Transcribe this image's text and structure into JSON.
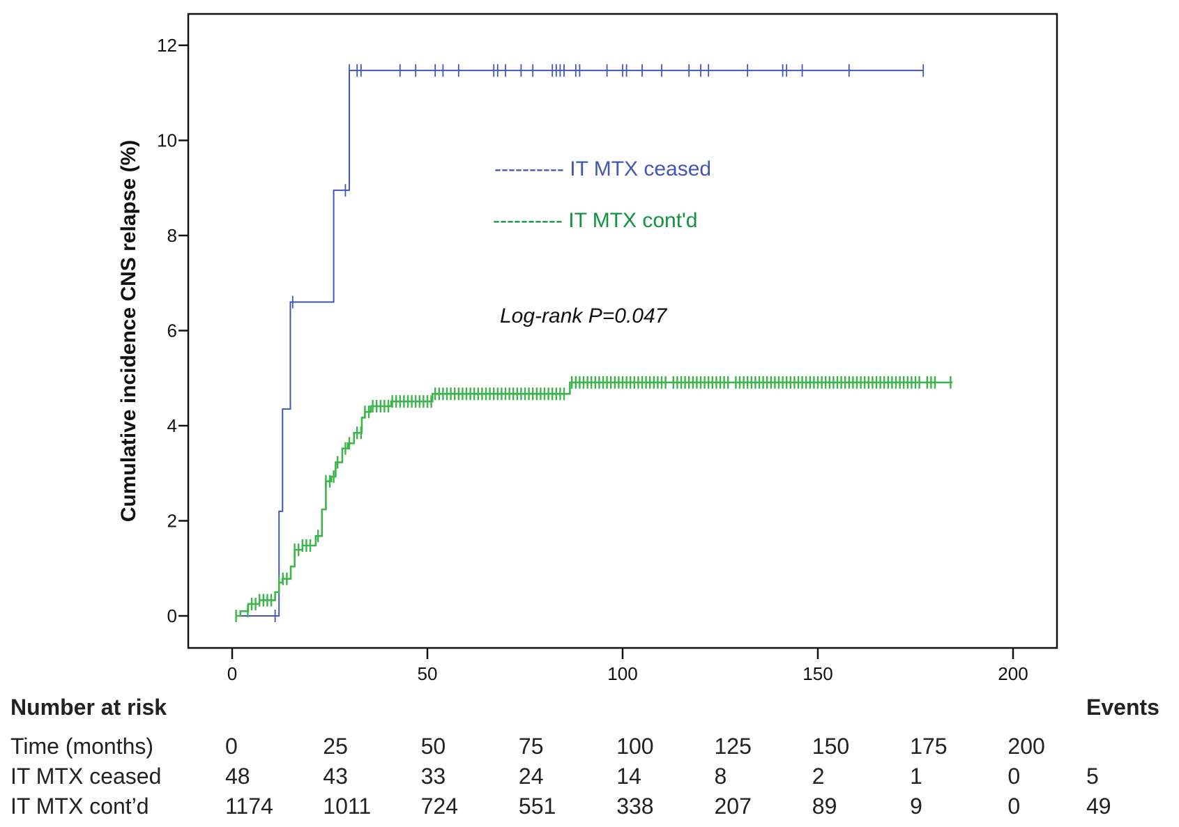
{
  "chart_data": {
    "type": "line",
    "subtype": "kaplan-meier-cumulative-incidence",
    "xlabel": "",
    "ylabel": "Cumulative incidence CNS relapse (%)",
    "xlim": [
      0,
      200
    ],
    "ylim": [
      0,
      12
    ],
    "xticks": [
      "0",
      "50",
      "100",
      "150",
      "200"
    ],
    "yticks": [
      "0",
      "2",
      "4",
      "6",
      "8",
      "10",
      "12"
    ],
    "grid": false,
    "legend_placement": "center-top",
    "annotation": "Log-rank P=0.047",
    "series": [
      {
        "name": "IT MTX ceased",
        "legend_label": "---------- IT MTX ceased",
        "color": "#4257b2",
        "start": 2.3,
        "end": 177,
        "steps": [
          [
            2.3,
            0
          ],
          [
            12,
            2.2
          ],
          [
            12.9,
            4.35
          ],
          [
            14.9,
            6.6
          ],
          [
            26,
            8.95
          ],
          [
            30,
            11.47
          ]
        ],
        "censored": [
          11,
          15.5,
          29,
          30,
          32,
          33,
          43,
          47,
          52,
          54,
          58,
          67,
          68,
          70,
          74,
          77,
          82,
          83,
          84,
          85,
          88,
          89,
          96,
          100,
          101,
          105,
          110,
          117,
          120,
          122,
          132,
          141,
          142,
          146,
          158,
          177
        ]
      },
      {
        "name": "IT MTX cont'd",
        "legend_label": "---------- IT MTX cont'd",
        "color": "#3cb54a",
        "text_color": "#0e9440",
        "start": 1,
        "end": 184.5,
        "steps": [
          [
            1,
            0
          ],
          [
            2.1,
            0.1
          ],
          [
            4.1,
            0.25
          ],
          [
            7,
            0.33
          ],
          [
            11,
            0.5
          ],
          [
            12,
            0.7
          ],
          [
            12.9,
            0.78
          ],
          [
            15,
            1.04
          ],
          [
            16,
            1.39
          ],
          [
            18,
            1.48
          ],
          [
            21.4,
            1.68
          ],
          [
            23,
            2.24
          ],
          [
            24,
            2.83
          ],
          [
            25.4,
            2.93
          ],
          [
            26.5,
            3.23
          ],
          [
            28.2,
            3.52
          ],
          [
            29.6,
            3.63
          ],
          [
            31.2,
            3.85
          ],
          [
            33.2,
            4.17
          ],
          [
            34,
            4.29
          ],
          [
            35.5,
            4.41
          ],
          [
            40.7,
            4.51
          ],
          [
            51.3,
            4.67
          ],
          [
            86.5,
            4.91
          ]
        ],
        "censored": [
          1,
          4,
          5,
          6,
          7,
          8,
          9,
          10,
          12,
          13,
          14,
          16,
          17,
          18,
          19,
          20,
          22,
          24,
          25,
          26,
          27,
          29,
          30,
          32,
          33,
          34,
          35,
          36,
          37,
          38,
          39,
          40,
          41,
          42,
          43,
          44,
          45,
          46,
          47,
          48,
          49,
          50,
          51,
          52,
          53,
          54,
          55,
          56,
          57,
          58,
          59,
          60,
          61,
          62,
          63,
          64,
          65,
          66,
          67,
          68,
          69,
          70,
          71,
          72,
          73,
          74,
          75,
          76,
          77,
          78,
          79,
          80,
          81,
          82,
          83,
          84,
          85,
          87,
          88,
          89,
          90,
          91,
          92,
          93,
          94,
          95,
          96,
          97,
          98,
          99,
          100,
          101,
          102,
          103,
          104,
          105,
          106,
          107,
          108,
          109,
          110,
          111,
          113,
          114,
          115,
          116,
          117,
          118,
          119,
          120,
          121,
          122,
          123,
          124,
          125,
          126,
          127,
          129,
          130,
          131,
          132,
          133,
          134,
          135,
          136,
          137,
          138,
          139,
          140,
          141,
          142,
          143,
          144,
          145,
          146,
          147,
          148,
          149,
          150,
          151,
          152,
          153,
          154,
          155,
          156,
          157,
          158,
          159,
          160,
          161,
          162,
          163,
          164,
          165,
          166,
          167,
          168,
          169,
          170,
          171,
          172,
          173,
          174,
          175,
          176,
          178,
          179,
          180,
          184
        ]
      }
    ]
  },
  "risk_table": {
    "title": "Number at risk",
    "events_header": "Events",
    "rows": [
      {
        "label": "Time (months)",
        "values": [
          "0",
          "25",
          "50",
          "75",
          "100",
          "125",
          "150",
          "175",
          "200"
        ],
        "events": ""
      },
      {
        "label": "IT MTX ceased",
        "values": [
          "48",
          "43",
          "33",
          "24",
          "14",
          "8",
          "2",
          "1",
          "0"
        ],
        "events": "5"
      },
      {
        "label": "IT MTX cont’d",
        "values": [
          "1174",
          "1011",
          "724",
          "551",
          "338",
          "207",
          "89",
          "9",
          "0"
        ],
        "events": "49"
      }
    ]
  }
}
